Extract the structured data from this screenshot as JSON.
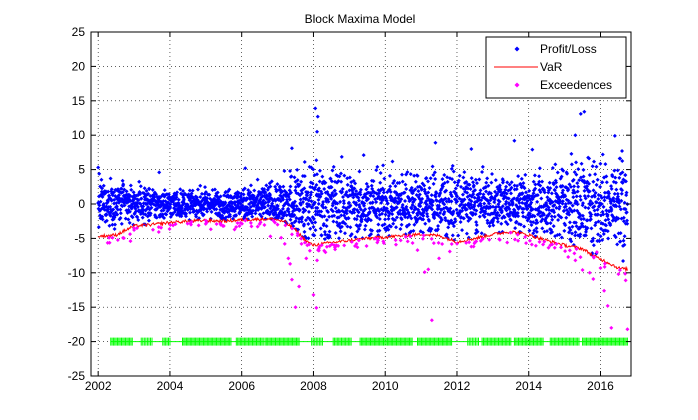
{
  "chart_data": {
    "type": "scatter",
    "title": "Block Maxima Model",
    "xlabel": "",
    "ylabel": "",
    "xlim": [
      2001.8,
      2016.85
    ],
    "ylim": [
      -25,
      25
    ],
    "x_ticks": [
      2002,
      2004,
      2006,
      2008,
      2010,
      2012,
      2014,
      2016
    ],
    "y_ticks": [
      25,
      20,
      15,
      10,
      5,
      0,
      -5,
      -10,
      -15,
      -20,
      -25
    ],
    "x_tick_labels": [
      "2002",
      "2004",
      "2006",
      "2008",
      "2010",
      "2012",
      "2014",
      "2016"
    ],
    "y_tick_labels": [
      "25",
      "20",
      "15",
      "10",
      "5",
      "0",
      "-5",
      "-10",
      "-15",
      "-20",
      "-25"
    ],
    "grid": true,
    "legend_position": "top-right",
    "legend": [
      "Profit/Loss",
      "VaR",
      "Exceedences"
    ],
    "colors": {
      "profit_loss": "#0000ff",
      "var": "#ff0000",
      "exceedences": "#ff00ff",
      "markers": "#00ff00"
    },
    "var_curve": {
      "x": [
        2002.0,
        2002.5,
        2003.0,
        2003.5,
        2004.0,
        2004.5,
        2005.0,
        2005.5,
        2006.0,
        2006.5,
        2006.9,
        2007.2,
        2007.5,
        2007.8,
        2008.0,
        2008.5,
        2009.0,
        2009.5,
        2010.0,
        2010.5,
        2011.0,
        2011.5,
        2012.0,
        2012.5,
        2013.0,
        2013.5,
        2014.0,
        2014.5,
        2015.0,
        2015.5,
        2015.8,
        2016.2,
        2016.5,
        2016.75
      ],
      "y": [
        -4.7,
        -4.5,
        -3.2,
        -3.0,
        -2.7,
        -2.5,
        -2.4,
        -2.5,
        -2.3,
        -2.2,
        -2.2,
        -2.6,
        -3.8,
        -5.4,
        -6.0,
        -5.6,
        -5.3,
        -5.0,
        -4.8,
        -4.6,
        -4.4,
        -4.6,
        -5.5,
        -5.0,
        -4.4,
        -4.0,
        -4.5,
        -5.3,
        -6.0,
        -6.5,
        -7.5,
        -8.5,
        -9.3,
        -9.5
      ]
    },
    "profit_loss_band": {
      "x": [
        2002.0,
        2002.5,
        2003.0,
        2003.5,
        2004.0,
        2004.5,
        2005.0,
        2005.5,
        2006.0,
        2006.5,
        2007.0,
        2007.5,
        2008.0,
        2008.5,
        2009.0,
        2009.5,
        2010.0,
        2010.5,
        2011.0,
        2011.5,
        2012.0,
        2012.5,
        2013.0,
        2013.5,
        2014.0,
        2014.5,
        2015.0,
        2015.5,
        2016.0,
        2016.5,
        2016.75
      ],
      "spread": [
        2.2,
        2.2,
        1.8,
        1.6,
        1.4,
        1.3,
        1.3,
        1.4,
        1.5,
        1.8,
        2.5,
        3.2,
        4.0,
        3.5,
        3.3,
        3.0,
        3.0,
        2.8,
        3.2,
        3.3,
        3.2,
        2.8,
        2.6,
        2.4,
        2.8,
        3.3,
        4.0,
        4.3,
        4.5,
        4.7,
        4.7
      ]
    },
    "profit_loss_outliers": {
      "x": [
        2008.05,
        2008.12,
        2008.1,
        2007.4,
        2011.4,
        2015.45,
        2015.55,
        2015.3,
        2016.4,
        2016.6,
        2013.6,
        2014.1,
        2012.4,
        2003.7,
        2002.0,
        2006.1,
        2009.4
      ],
      "y": [
        13.9,
        12.7,
        10.5,
        8.1,
        8.9,
        13.1,
        13.4,
        10.0,
        9.9,
        7.7,
        9.2,
        7.9,
        8.0,
        4.6,
        5.3,
        5.2,
        7.1
      ]
    },
    "exceedences": {
      "x": [
        2002.4,
        2002.9,
        2003.0,
        2004.6,
        2004.8,
        2005.0,
        2005.3,
        2005.5,
        2005.8,
        2006.1,
        2006.5,
        2006.8,
        2007.0,
        2007.1,
        2007.2,
        2007.3,
        2007.35,
        2007.4,
        2007.5,
        2007.6,
        2007.8,
        2007.9,
        2008.0,
        2008.08,
        2008.1,
        2008.15,
        2008.3,
        2008.6,
        2009.2,
        2009.8,
        2010.3,
        2010.9,
        2011.1,
        2011.2,
        2011.3,
        2011.5,
        2011.8,
        2012.4,
        2012.9,
        2013.4,
        2013.9,
        2014.3,
        2014.6,
        2014.9,
        2015.1,
        2015.3,
        2015.5,
        2015.7,
        2015.8,
        2015.9,
        2016.0,
        2016.1,
        2016.2,
        2016.3,
        2016.5,
        2016.7,
        2016.75
      ],
      "y": [
        -4.9,
        -5.4,
        -3.5,
        -2.6,
        -3.1,
        -2.4,
        -2.9,
        -3.2,
        -3.7,
        -2.4,
        -2.9,
        -4.7,
        -3.0,
        -4.9,
        -5.8,
        -7.9,
        -8.7,
        -11.0,
        -15.0,
        -12.0,
        -7.9,
        -6.8,
        -13.2,
        -15.1,
        -8.2,
        -6.5,
        -6.8,
        -6.3,
        -5.8,
        -5.3,
        -5.9,
        -6.7,
        -9.9,
        -9.5,
        -16.9,
        -7.9,
        -6.9,
        -6.2,
        -5.2,
        -5.6,
        -4.8,
        -5.5,
        -6.0,
        -6.3,
        -7.7,
        -8.2,
        -9.6,
        -10.0,
        -10.9,
        -7.0,
        -9.3,
        -12.6,
        -14.8,
        -18.0,
        -10.2,
        -11.1,
        -18.2
      ]
    },
    "exceedence_markers": {
      "y": -20,
      "ranges": [
        [
          2002.35,
          2002.95
        ],
        [
          2003.2,
          2003.5
        ],
        [
          2003.8,
          2004.0
        ],
        [
          2004.35,
          2005.7
        ],
        [
          2005.85,
          2006.6
        ],
        [
          2006.65,
          2007.6
        ],
        [
          2007.95,
          2008.25
        ],
        [
          2008.55,
          2009.05
        ],
        [
          2009.3,
          2010.75
        ],
        [
          2010.9,
          2011.85
        ],
        [
          2012.3,
          2012.6
        ],
        [
          2012.7,
          2013.5
        ],
        [
          2013.6,
          2014.4
        ],
        [
          2014.6,
          2015.4
        ],
        [
          2015.5,
          2016.75
        ]
      ]
    }
  }
}
